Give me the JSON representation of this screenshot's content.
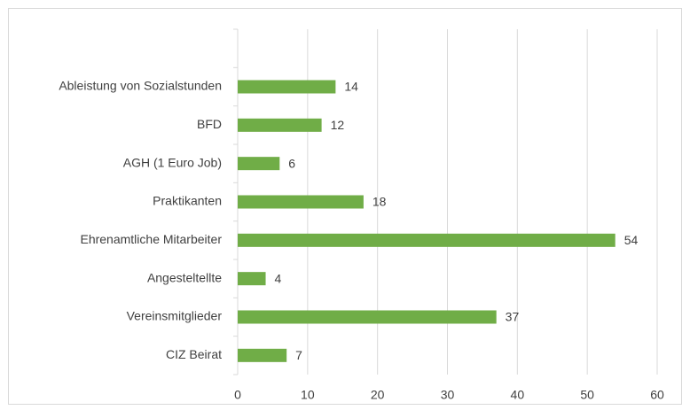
{
  "chart_data": {
    "type": "bar",
    "orientation": "horizontal",
    "categories": [
      null,
      "Ableistung von Sozialstunden",
      "BFD",
      "AGH (1 Euro Job)",
      "Praktikanten",
      "Ehrenamtliche Mitarbeiter",
      "Angesteltellte",
      "Vereinsmitglieder",
      "CIZ Beirat"
    ],
    "values": [
      null,
      14,
      12,
      6,
      18,
      54,
      4,
      37,
      7
    ],
    "color": "#70ad47",
    "xlim": [
      0,
      60
    ],
    "xticks": [
      0,
      10,
      20,
      30,
      40,
      50,
      60
    ],
    "grid": true
  }
}
